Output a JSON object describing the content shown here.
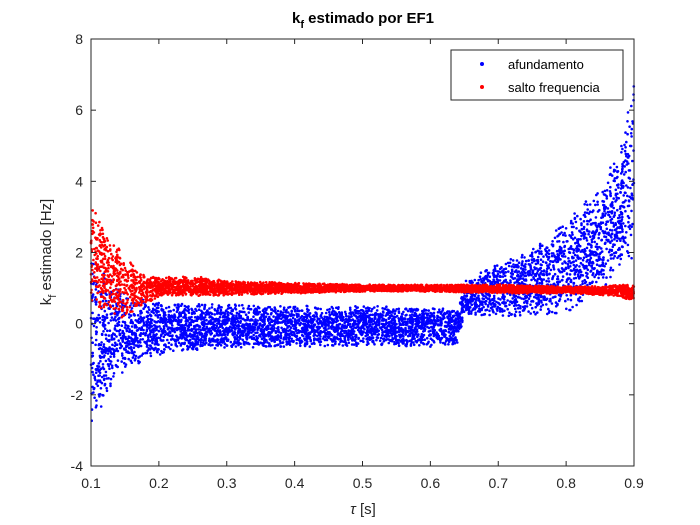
{
  "chart_data": {
    "type": "scatter",
    "title": "k",
    "title_subscript": "f",
    "title_rest": " estimado por EF1",
    "xlabel_symbol": "τ",
    "xlabel_rest": " [s]",
    "ylabel": "k",
    "ylabel_subscript": "f",
    "ylabel_rest": " estimado [Hz]",
    "xlim": [
      0.1,
      0.9
    ],
    "ylim": [
      -4,
      8
    ],
    "xticks": [
      "0.1",
      "0.2",
      "0.3",
      "0.4",
      "0.5",
      "0.6",
      "0.7",
      "0.8",
      "0.9"
    ],
    "yticks": [
      "-4",
      "-2",
      "0",
      "2",
      "4",
      "6",
      "8"
    ],
    "grid": false,
    "legend_position": "top-right",
    "series": [
      {
        "name": "afundamento",
        "color": "#0000ff",
        "envelope_x": [
          0.1,
          0.12,
          0.15,
          0.2,
          0.25,
          0.3,
          0.4,
          0.5,
          0.6,
          0.64,
          0.65,
          0.7,
          0.75,
          0.8,
          0.85,
          0.88,
          0.9
        ],
        "envelope_upper": [
          2.2,
          1.5,
          0.9,
          0.6,
          0.55,
          0.55,
          0.5,
          0.5,
          0.45,
          0.45,
          1.2,
          1.7,
          2.1,
          2.9,
          3.9,
          5.0,
          7.0
        ],
        "envelope_lower": [
          -3.0,
          -2.2,
          -1.3,
          -0.9,
          -0.75,
          -0.7,
          -0.65,
          -0.65,
          -0.65,
          -0.6,
          0.2,
          0.2,
          0.2,
          0.3,
          0.9,
          1.5,
          1.8
        ]
      },
      {
        "name": "salto frequencia",
        "color": "#ff0000",
        "envelope_x": [
          0.1,
          0.12,
          0.15,
          0.18,
          0.2,
          0.25,
          0.3,
          0.4,
          0.5,
          0.6,
          0.7,
          0.8,
          0.85,
          0.88,
          0.9
        ],
        "envelope_upper": [
          3.5,
          2.7,
          1.9,
          1.35,
          1.3,
          1.35,
          1.2,
          1.15,
          1.1,
          1.1,
          1.1,
          1.05,
          1.05,
          1.1,
          1.1
        ],
        "envelope_lower": [
          0.4,
          0.3,
          0.15,
          0.55,
          0.75,
          0.75,
          0.8,
          0.85,
          0.9,
          0.9,
          0.85,
          0.85,
          0.8,
          0.75,
          0.6
        ]
      }
    ]
  }
}
